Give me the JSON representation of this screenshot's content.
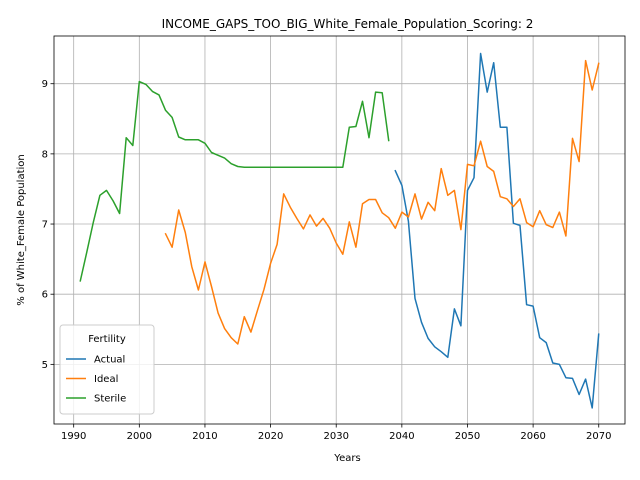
{
  "chart_data": {
    "type": "line",
    "title": "INCOME_GAPS_TOO_BIG_White_Female_Population_Scoring: 2",
    "xlabel": "Years",
    "ylabel": "% of White_Female Population",
    "xlim": [
      1987,
      2074
    ],
    "ylim": [
      4.15,
      9.68
    ],
    "xticks": [
      1990,
      2000,
      2010,
      2020,
      2030,
      2040,
      2050,
      2060,
      2070
    ],
    "yticks": [
      5,
      6,
      7,
      8,
      9
    ],
    "grid": true,
    "legend": {
      "title": "Fertility",
      "position": "lower-left"
    },
    "series": [
      {
        "name": "Actual",
        "color": "#1f77b4",
        "x": [
          2039,
          2040,
          2041,
          2042,
          2043,
          2044,
          2045,
          2046,
          2047,
          2048,
          2049,
          2050,
          2051,
          2052,
          2053,
          2054,
          2055,
          2056,
          2057,
          2058,
          2059,
          2060,
          2061,
          2062,
          2063,
          2064,
          2065,
          2066,
          2067,
          2068,
          2069,
          2070
        ],
        "y": [
          7.76,
          7.55,
          7.04,
          5.94,
          5.6,
          5.37,
          5.25,
          5.18,
          5.1,
          5.79,
          5.55,
          7.48,
          7.66,
          9.43,
          8.88,
          9.3,
          8.38,
          8.38,
          7.01,
          6.98,
          5.85,
          5.83,
          5.38,
          5.31,
          5.02,
          5.0,
          4.81,
          4.8,
          4.57,
          4.79,
          4.38,
          5.43
        ]
      },
      {
        "name": "Ideal",
        "color": "#ff7f0e",
        "x": [
          2004,
          2005,
          2006,
          2007,
          2008,
          2009,
          2010,
          2011,
          2012,
          2013,
          2014,
          2015,
          2016,
          2017,
          2018,
          2019,
          2020,
          2021,
          2022,
          2023,
          2024,
          2025,
          2026,
          2027,
          2028,
          2029,
          2030,
          2031,
          2032,
          2033,
          2034,
          2035,
          2036,
          2037,
          2038,
          2039,
          2040,
          2041,
          2042,
          2043,
          2044,
          2045,
          2046,
          2047,
          2048,
          2049,
          2050,
          2051,
          2052,
          2053,
          2054,
          2055,
          2056,
          2057,
          2058,
          2059,
          2060,
          2061,
          2062,
          2063,
          2064,
          2065,
          2066,
          2067,
          2068,
          2069,
          2070
        ],
        "y": [
          6.86,
          6.67,
          7.2,
          6.88,
          6.39,
          6.06,
          6.46,
          6.11,
          5.73,
          5.51,
          5.38,
          5.29,
          5.68,
          5.46,
          5.77,
          6.07,
          6.44,
          6.71,
          7.43,
          7.24,
          7.08,
          6.93,
          7.13,
          6.97,
          7.08,
          6.94,
          6.73,
          6.57,
          7.03,
          6.67,
          7.29,
          7.35,
          7.35,
          7.16,
          7.09,
          6.94,
          7.17,
          7.1,
          7.43,
          7.07,
          7.31,
          7.19,
          7.79,
          7.41,
          7.48,
          6.92,
          7.85,
          7.83,
          8.18,
          7.82,
          7.75,
          7.39,
          7.36,
          7.25,
          7.36,
          7.02,
          6.96,
          7.19,
          6.99,
          6.95,
          7.17,
          6.83,
          8.22,
          7.89,
          9.33,
          8.91,
          9.29
        ]
      },
      {
        "name": "Sterile",
        "color": "#2ca02c",
        "x": [
          1991,
          1992,
          1993,
          1994,
          1995,
          1996,
          1997,
          1998,
          1999,
          2000,
          2001,
          2002,
          2003,
          2004,
          2005,
          2006,
          2007,
          2008,
          2009,
          2010,
          2011,
          2012,
          2013,
          2014,
          2015,
          2016,
          2017,
          2018,
          2019,
          2020,
          2021,
          2022,
          2023,
          2024,
          2025,
          2026,
          2027,
          2028,
          2029,
          2030,
          2031,
          2032,
          2033,
          2034,
          2035,
          2036,
          2037,
          2038
        ],
        "y": [
          6.19,
          6.6,
          7.03,
          7.41,
          7.48,
          7.33,
          7.15,
          8.23,
          8.12,
          9.03,
          8.99,
          8.89,
          8.84,
          8.62,
          8.52,
          8.24,
          8.2,
          8.2,
          8.2,
          8.15,
          8.02,
          7.98,
          7.94,
          7.86,
          7.82,
          7.81,
          7.81,
          7.81,
          7.81,
          7.81,
          7.81,
          7.81,
          7.81,
          7.81,
          7.81,
          7.81,
          7.81,
          7.81,
          7.81,
          7.81,
          7.81,
          8.38,
          8.39,
          8.75,
          8.23,
          8.88,
          8.87,
          8.19
        ]
      }
    ]
  }
}
